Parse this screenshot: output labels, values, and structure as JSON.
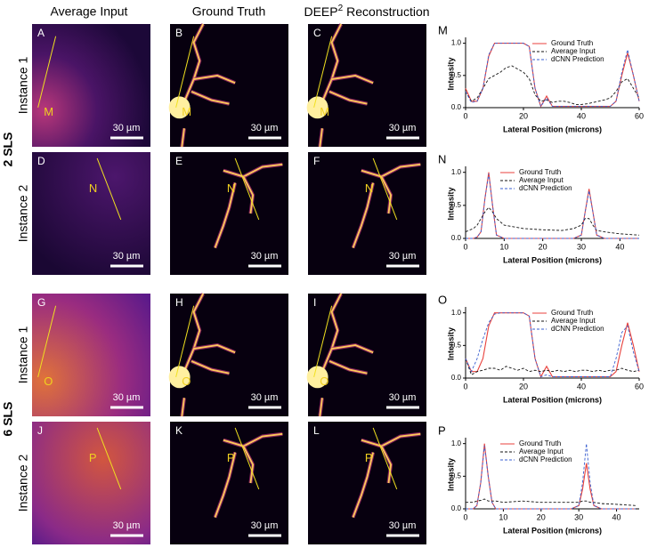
{
  "columns": {
    "average": "Average Input",
    "truth": "Ground Truth",
    "recon": {
      "base": "DEEP",
      "superscript": "2",
      "suffix": "Reconstruction"
    }
  },
  "scale_bar": "30 µm",
  "groups": [
    {
      "label": "2 SLS",
      "rows": [
        {
          "label": "Instance 1",
          "panels": [
            "A",
            "B",
            "C"
          ]
        },
        {
          "label": "Instance 2",
          "panels": [
            "D",
            "E",
            "F"
          ]
        }
      ]
    },
    {
      "label": "6 SLS",
      "rows": [
        {
          "label": "Instance 1",
          "panels": [
            "G",
            "H",
            "I"
          ]
        },
        {
          "label": "Instance 2",
          "panels": [
            "J",
            "K",
            "L"
          ]
        }
      ]
    }
  ],
  "charts": [
    {
      "type": "line",
      "label": "M",
      "xlabel": "Lateral Position (microns)",
      "ylabel": "Intensity",
      "legend": "upper right",
      "xlim": [
        0,
        60
      ],
      "xticks": [
        0,
        20,
        40,
        60
      ],
      "ylim": [
        0,
        1.05
      ],
      "yticks": [
        {
          "value": 0,
          "label": "0.0"
        },
        {
          "value": 0.5,
          "label": "0.5"
        },
        {
          "value": 1,
          "label": "1.0"
        }
      ],
      "x": [
        0,
        2,
        4,
        6,
        8,
        10,
        12,
        14,
        16,
        18,
        20,
        22,
        24,
        26,
        28,
        30,
        32,
        34,
        36,
        38,
        40,
        42,
        44,
        46,
        48,
        50,
        52,
        54,
        56,
        58,
        60
      ],
      "series": [
        {
          "name": "Ground Truth",
          "color": "#e8413c",
          "dashed": false,
          "values": [
            0.3,
            0.1,
            0.1,
            0.3,
            0.8,
            1,
            1,
            1,
            1,
            1,
            1,
            0.95,
            0.3,
            0.02,
            0.18,
            0.02,
            0.02,
            0.02,
            0.02,
            0.02,
            0.02,
            0.02,
            0.02,
            0.02,
            0.02,
            0.02,
            0.1,
            0.5,
            0.85,
            0.5,
            0.1
          ]
        },
        {
          "name": "Average Input",
          "color": "#111111",
          "dashed": true,
          "values": [
            0.25,
            0.1,
            0.15,
            0.3,
            0.45,
            0.5,
            0.55,
            0.62,
            0.65,
            0.6,
            0.55,
            0.45,
            0.2,
            0.1,
            0.12,
            0.08,
            0.1,
            0.1,
            0.08,
            0.05,
            0.05,
            0.06,
            0.08,
            0.1,
            0.12,
            0.15,
            0.25,
            0.4,
            0.45,
            0.3,
            0.15
          ]
        },
        {
          "name": "dCNN Prediction",
          "color": "#3a5fd0",
          "dashed": true,
          "values": [
            0.25,
            0.08,
            0.1,
            0.3,
            0.82,
            1,
            1,
            1,
            1,
            1,
            1,
            0.95,
            0.3,
            0.02,
            0.15,
            0.02,
            0.02,
            0.02,
            0.02,
            0.02,
            0.02,
            0.02,
            0.02,
            0.02,
            0.02,
            0.02,
            0.1,
            0.55,
            0.9,
            0.5,
            0.1
          ]
        }
      ]
    },
    {
      "type": "line",
      "label": "N",
      "xlabel": "Lateral Position (microns)",
      "ylabel": "Intensity",
      "legend": "upper center",
      "xlim": [
        0,
        45
      ],
      "xticks": [
        0,
        10,
        20,
        30,
        40
      ],
      "ylim": [
        0,
        1.05
      ],
      "yticks": [
        {
          "value": 0,
          "label": "0.0"
        },
        {
          "value": 0.5,
          "label": "0.5"
        },
        {
          "value": 1,
          "label": "1.0"
        }
      ],
      "x": [
        0,
        2,
        3,
        4,
        5,
        6,
        7,
        8,
        10,
        15,
        20,
        25,
        28,
        30,
        31,
        32,
        33,
        34,
        36,
        40,
        45
      ],
      "series": [
        {
          "name": "Ground Truth",
          "color": "#e8413c",
          "dashed": false,
          "values": [
            0,
            0,
            0.02,
            0.1,
            0.6,
            1,
            0.5,
            0.05,
            0,
            0,
            0,
            0,
            0,
            0.05,
            0.4,
            0.75,
            0.4,
            0.05,
            0,
            0,
            0
          ]
        },
        {
          "name": "Average Input",
          "color": "#111111",
          "dashed": true,
          "values": [
            0.1,
            0.15,
            0.2,
            0.3,
            0.4,
            0.47,
            0.4,
            0.3,
            0.2,
            0.15,
            0.13,
            0.12,
            0.15,
            0.2,
            0.3,
            0.3,
            0.2,
            0.12,
            0.1,
            0.07,
            0.05
          ]
        },
        {
          "name": "dCNN Prediction",
          "color": "#3a5fd0",
          "dashed": true,
          "values": [
            0,
            0,
            0.02,
            0.1,
            0.6,
            0.98,
            0.5,
            0.05,
            0,
            0,
            0,
            0,
            0,
            0.05,
            0.4,
            0.72,
            0.4,
            0.05,
            0,
            0,
            0
          ]
        }
      ]
    },
    {
      "type": "line",
      "label": "O",
      "xlabel": "Lateral Position (microns)",
      "ylabel": "Intensity",
      "legend": "upper right",
      "xlim": [
        0,
        60
      ],
      "xticks": [
        0,
        20,
        40,
        60
      ],
      "ylim": [
        0,
        1.05
      ],
      "yticks": [
        {
          "value": 0,
          "label": "0.0"
        },
        {
          "value": 0.5,
          "label": "0.5"
        },
        {
          "value": 1,
          "label": "1.0"
        }
      ],
      "x": [
        0,
        2,
        4,
        6,
        8,
        10,
        12,
        14,
        16,
        18,
        20,
        22,
        24,
        26,
        28,
        30,
        32,
        34,
        36,
        38,
        40,
        42,
        44,
        46,
        48,
        50,
        52,
        54,
        56,
        58,
        60
      ],
      "series": [
        {
          "name": "Ground Truth",
          "color": "#e8413c",
          "dashed": false,
          "values": [
            0.3,
            0.1,
            0.1,
            0.3,
            0.8,
            1,
            1,
            1,
            1,
            1,
            1,
            0.95,
            0.3,
            0.02,
            0.18,
            0.02,
            0.02,
            0.02,
            0.02,
            0.02,
            0.02,
            0.02,
            0.02,
            0.02,
            0.02,
            0.02,
            0.1,
            0.5,
            0.85,
            0.5,
            0.1
          ]
        },
        {
          "name": "Average Input",
          "color": "#111111",
          "dashed": true,
          "values": [
            0.3,
            0.05,
            0.1,
            0.12,
            0.15,
            0.15,
            0.12,
            0.18,
            0.15,
            0.12,
            0.15,
            0.1,
            0.12,
            0.1,
            0.12,
            0.1,
            0.12,
            0.1,
            0.12,
            0.1,
            0.12,
            0.12,
            0.1,
            0.12,
            0.1,
            0.12,
            0.12,
            0.15,
            0.12,
            0.1,
            0.12
          ]
        },
        {
          "name": "dCNN Prediction",
          "color": "#3a5fd0",
          "dashed": true,
          "values": [
            0.3,
            0.1,
            0.3,
            0.6,
            0.85,
            0.98,
            1,
            1,
            1,
            1,
            1,
            0.95,
            0.3,
            0.02,
            0.05,
            0.02,
            0.02,
            0.02,
            0.02,
            0.02,
            0.02,
            0.02,
            0.02,
            0.02,
            0.02,
            0.02,
            0.3,
            0.7,
            0.8,
            0.4,
            0.1
          ]
        }
      ]
    },
    {
      "type": "line",
      "label": "P",
      "xlabel": "Lateral Position (microns)",
      "ylabel": "Intensity",
      "legend": "upper center",
      "xlim": [
        0,
        46
      ],
      "xticks": [
        0,
        10,
        20,
        30,
        40
      ],
      "ylim": [
        0,
        1.05
      ],
      "yticks": [
        {
          "value": 0,
          "label": "0.0"
        },
        {
          "value": 0.5,
          "label": "0.5"
        },
        {
          "value": 1,
          "label": "1.0"
        }
      ],
      "x": [
        0,
        2,
        3,
        4,
        5,
        6,
        7,
        8,
        10,
        15,
        20,
        25,
        28,
        30,
        31,
        32,
        33,
        34,
        36,
        40,
        45
      ],
      "series": [
        {
          "name": "Ground Truth",
          "color": "#e8413c",
          "dashed": false,
          "values": [
            0,
            0,
            0.05,
            0.4,
            1,
            0.5,
            0.1,
            0,
            0,
            0,
            0,
            0,
            0,
            0.05,
            0.3,
            0.7,
            0.3,
            0.05,
            0,
            0,
            0
          ]
        },
        {
          "name": "Average Input",
          "color": "#111111",
          "dashed": true,
          "values": [
            0.1,
            0.1,
            0.12,
            0.13,
            0.15,
            0.12,
            0.12,
            0.12,
            0.1,
            0.12,
            0.1,
            0.1,
            0.1,
            0.1,
            0.12,
            0.12,
            0.1,
            0.1,
            0.08,
            0.07,
            0.05
          ]
        },
        {
          "name": "dCNN Prediction",
          "color": "#3a5fd0",
          "dashed": true,
          "values": [
            0,
            0,
            0.05,
            0.4,
            0.97,
            0.5,
            0.1,
            0,
            0,
            0,
            0,
            0,
            0,
            0.05,
            0.4,
            1,
            0.4,
            0.05,
            0,
            0,
            0
          ]
        }
      ]
    }
  ]
}
